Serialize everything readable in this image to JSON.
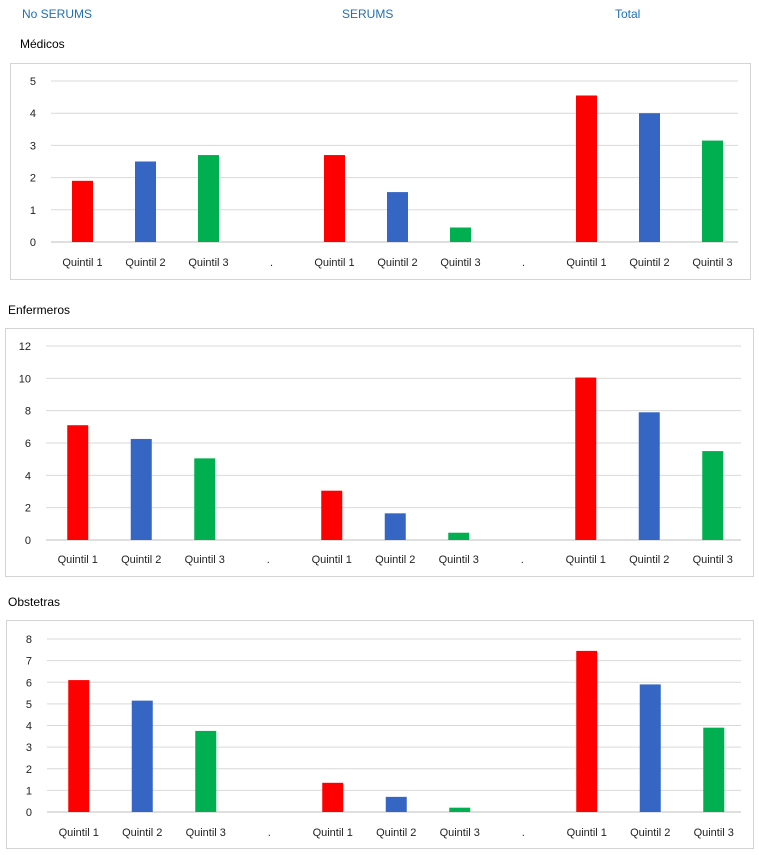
{
  "header": {
    "col1": "No SERUMS",
    "col2": "SERUMS",
    "col3": "Total"
  },
  "colors": {
    "quintil_1": "#ff0000",
    "quintil_2": "#3566c4",
    "quintil_3": "#00b050",
    "header_text": "#1f6fb4",
    "gridline": "#d9d9d9"
  },
  "chart_data": [
    {
      "type": "bar",
      "title": "Médicos",
      "categories": [
        "Quintil 1",
        "Quintil 2",
        "Quintil 3",
        ".",
        "Quintil 1",
        "Quintil 2",
        "Quintil 3",
        ".",
        "Quintil 1",
        "Quintil 2",
        "Quintil 3"
      ],
      "values": [
        1.9,
        2.5,
        2.7,
        null,
        2.7,
        1.55,
        0.45,
        null,
        4.55,
        4.0,
        3.15
      ],
      "ylim": [
        0,
        5
      ],
      "yticks": [
        0,
        1,
        2,
        3,
        4,
        5
      ],
      "grid": true
    },
    {
      "type": "bar",
      "title": "Enfermeros",
      "categories": [
        "Quintil 1",
        "Quintil 2",
        "Quintil 3",
        ".",
        "Quintil 1",
        "Quintil 2",
        "Quintil 3",
        ".",
        "Quintil 1",
        "Quintil 2",
        "Quintil 3"
      ],
      "values": [
        7.1,
        6.25,
        5.05,
        null,
        3.05,
        1.65,
        0.45,
        null,
        10.05,
        7.9,
        5.5
      ],
      "ylim": [
        0,
        12
      ],
      "yticks": [
        0,
        2,
        4,
        6,
        8,
        10,
        12
      ],
      "grid": true
    },
    {
      "type": "bar",
      "title": "Obstetras",
      "categories": [
        "Quintil 1",
        "Quintil 2",
        "Quintil 3",
        ".",
        "Quintil 1",
        "Quintil 2",
        "Quintil 3",
        ".",
        "Quintil 1",
        "Quintil 2",
        "Quintil 3"
      ],
      "values": [
        6.1,
        5.15,
        3.75,
        null,
        1.35,
        0.7,
        0.2,
        null,
        7.45,
        5.9,
        3.9
      ],
      "ylim": [
        0,
        8
      ],
      "yticks": [
        0,
        1,
        2,
        3,
        4,
        5,
        6,
        7,
        8
      ],
      "grid": true
    }
  ]
}
